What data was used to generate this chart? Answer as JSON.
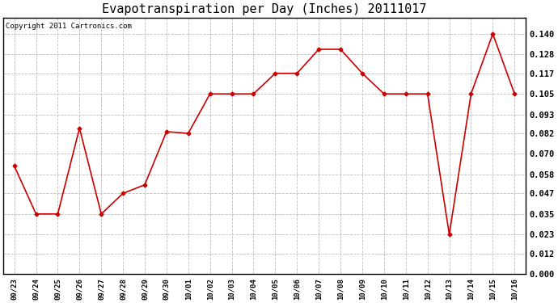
{
  "title": "Evapotranspiration per Day (Inches) 20111017",
  "copyright": "Copyright 2011 Cartronics.com",
  "dates": [
    "09/23",
    "09/24",
    "09/25",
    "09/26",
    "09/27",
    "09/28",
    "09/29",
    "09/30",
    "10/01",
    "10/02",
    "10/03",
    "10/04",
    "10/05",
    "10/06",
    "10/07",
    "10/08",
    "10/09",
    "10/10",
    "10/11",
    "10/12",
    "10/13",
    "10/14",
    "10/15",
    "10/16"
  ],
  "values": [
    0.063,
    0.035,
    0.035,
    0.085,
    0.035,
    0.047,
    0.052,
    0.083,
    0.082,
    0.105,
    0.105,
    0.105,
    0.117,
    0.117,
    0.131,
    0.131,
    0.117,
    0.105,
    0.105,
    0.105,
    0.023,
    0.105,
    0.14,
    0.105
  ],
  "line_color": "#cc0000",
  "marker": "D",
  "marker_size": 2.5,
  "bg_color": "#ffffff",
  "plot_bg_color": "#ffffff",
  "grid_color": "#bbbbbb",
  "ylim": [
    0.0,
    0.1495
  ],
  "yticks": [
    0.0,
    0.012,
    0.023,
    0.035,
    0.047,
    0.058,
    0.07,
    0.082,
    0.093,
    0.105,
    0.117,
    0.128,
    0.14
  ],
  "title_fontsize": 11,
  "copyright_fontsize": 6.5,
  "tick_fontsize": 7.5,
  "xtick_fontsize": 6.5
}
